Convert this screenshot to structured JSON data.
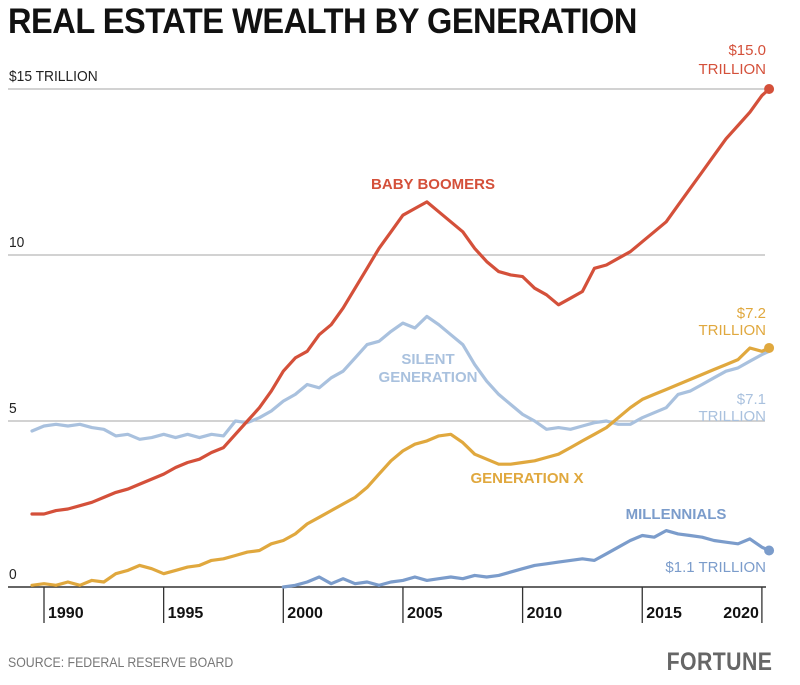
{
  "title": "REAL ESTATE WEALTH BY GENERATION",
  "source": "SOURCE: FEDERAL RESERVE BOARD",
  "brand": "FORTUNE",
  "chart_data": {
    "type": "line",
    "title": "REAL ESTATE WEALTH BY GENERATION",
    "xlabel": "",
    "ylabel": "",
    "xlim": [
      1989.5,
      2020.3
    ],
    "ylim": [
      0,
      15
    ],
    "grid": true,
    "x_ticks": [
      1990,
      1995,
      2000,
      2005,
      2010,
      2015,
      2020
    ],
    "x_tick_labels": [
      "1990",
      "1995",
      "2000",
      "2005",
      "2010",
      "2015",
      "2020"
    ],
    "y_ticks": [
      0,
      5,
      10,
      15
    ],
    "y_tick_labels": [
      "0",
      "5",
      "10",
      "$15 TRILLION"
    ],
    "units": "trillions of dollars",
    "series": [
      {
        "name": "BABY BOOMERS",
        "color": "#d4503a",
        "end_label": [
          "$15.0",
          "TRILLION"
        ],
        "end_value": 15.0,
        "x": [
          1989.5,
          1990,
          1990.5,
          1991,
          1991.5,
          1992,
          1992.5,
          1993,
          1993.5,
          1994,
          1994.5,
          1995,
          1995.5,
          1996,
          1996.5,
          1997,
          1997.5,
          1998,
          1998.5,
          1999,
          1999.5,
          2000,
          2000.5,
          2001,
          2001.5,
          2002,
          2002.5,
          2003,
          2003.5,
          2004,
          2004.5,
          2005,
          2005.5,
          2006,
          2006.5,
          2007,
          2007.5,
          2008,
          2008.5,
          2009,
          2009.5,
          2010,
          2010.5,
          2011,
          2011.5,
          2012,
          2012.5,
          2013,
          2013.5,
          2014,
          2014.5,
          2015,
          2015.5,
          2016,
          2016.5,
          2017,
          2017.5,
          2018,
          2018.5,
          2019,
          2019.5,
          2020,
          2020.3
        ],
        "values": [
          2.2,
          2.2,
          2.3,
          2.35,
          2.45,
          2.55,
          2.7,
          2.85,
          2.95,
          3.1,
          3.25,
          3.4,
          3.6,
          3.75,
          3.85,
          4.05,
          4.2,
          4.6,
          5.0,
          5.4,
          5.9,
          6.5,
          6.9,
          7.1,
          7.6,
          7.9,
          8.4,
          9.0,
          9.6,
          10.2,
          10.7,
          11.2,
          11.4,
          11.6,
          11.3,
          11.0,
          10.7,
          10.2,
          9.8,
          9.5,
          9.4,
          9.35,
          9.0,
          8.8,
          8.5,
          8.7,
          8.9,
          9.6,
          9.7,
          9.9,
          10.1,
          10.4,
          10.7,
          11.0,
          11.5,
          12.0,
          12.5,
          13.0,
          13.5,
          13.9,
          14.3,
          14.8,
          15.0
        ]
      },
      {
        "name": "SILENT GENERATION",
        "color": "#a9c1de",
        "end_label": [
          "$7.1",
          "TRILLION"
        ],
        "end_value": 7.1,
        "x": [
          1989.5,
          1990,
          1990.5,
          1991,
          1991.5,
          1992,
          1992.5,
          1993,
          1993.5,
          1994,
          1994.5,
          1995,
          1995.5,
          1996,
          1996.5,
          1997,
          1997.5,
          1998,
          1998.5,
          1999,
          1999.5,
          2000,
          2000.5,
          2001,
          2001.5,
          2002,
          2002.5,
          2003,
          2003.5,
          2004,
          2004.5,
          2005,
          2005.5,
          2006,
          2006.5,
          2007,
          2007.5,
          2008,
          2008.5,
          2009,
          2009.5,
          2010,
          2010.5,
          2011,
          2011.5,
          2012,
          2012.5,
          2013,
          2013.5,
          2014,
          2014.5,
          2015,
          2015.5,
          2016,
          2016.5,
          2017,
          2017.5,
          2018,
          2018.5,
          2019,
          2019.5,
          2020,
          2020.3
        ],
        "values": [
          4.7,
          4.85,
          4.9,
          4.85,
          4.9,
          4.8,
          4.75,
          4.55,
          4.6,
          4.45,
          4.5,
          4.6,
          4.5,
          4.6,
          4.5,
          4.6,
          4.55,
          5.0,
          4.95,
          5.1,
          5.3,
          5.6,
          5.8,
          6.1,
          6.0,
          6.3,
          6.5,
          6.9,
          7.3,
          7.4,
          7.7,
          7.95,
          7.8,
          8.15,
          7.9,
          7.6,
          7.3,
          6.7,
          6.2,
          5.8,
          5.5,
          5.2,
          5.0,
          4.75,
          4.8,
          4.75,
          4.85,
          4.95,
          5.0,
          4.9,
          4.9,
          5.1,
          5.25,
          5.4,
          5.8,
          5.9,
          6.1,
          6.3,
          6.5,
          6.6,
          6.8,
          7.0,
          7.1
        ]
      },
      {
        "name": "GENERATION X",
        "color": "#e0a83e",
        "end_label": [
          "$7.2",
          "TRILLION"
        ],
        "end_value": 7.2,
        "x": [
          1989.5,
          1990,
          1990.5,
          1991,
          1991.5,
          1992,
          1992.5,
          1993,
          1993.5,
          1994,
          1994.5,
          1995,
          1995.5,
          1996,
          1996.5,
          1997,
          1997.5,
          1998,
          1998.5,
          1999,
          1999.5,
          2000,
          2000.5,
          2001,
          2001.5,
          2002,
          2002.5,
          2003,
          2003.5,
          2004,
          2004.5,
          2005,
          2005.5,
          2006,
          2006.5,
          2007,
          2007.5,
          2008,
          2008.5,
          2009,
          2009.5,
          2010,
          2010.5,
          2011,
          2011.5,
          2012,
          2012.5,
          2013,
          2013.5,
          2014,
          2014.5,
          2015,
          2015.5,
          2016,
          2016.5,
          2017,
          2017.5,
          2018,
          2018.5,
          2019,
          2019.5,
          2020,
          2020.3
        ],
        "values": [
          0.05,
          0.1,
          0.05,
          0.15,
          0.05,
          0.2,
          0.15,
          0.4,
          0.5,
          0.65,
          0.55,
          0.4,
          0.5,
          0.6,
          0.65,
          0.8,
          0.85,
          0.95,
          1.05,
          1.1,
          1.3,
          1.4,
          1.6,
          1.9,
          2.1,
          2.3,
          2.5,
          2.7,
          3.0,
          3.4,
          3.8,
          4.1,
          4.3,
          4.4,
          4.55,
          4.6,
          4.35,
          4.0,
          3.85,
          3.7,
          3.7,
          3.75,
          3.8,
          3.9,
          4.0,
          4.2,
          4.4,
          4.6,
          4.8,
          5.1,
          5.4,
          5.65,
          5.8,
          5.95,
          6.1,
          6.25,
          6.4,
          6.55,
          6.7,
          6.85,
          7.2,
          7.1,
          7.2
        ]
      },
      {
        "name": "MILLENNIALS",
        "color": "#7b9ccb",
        "end_label": [
          "$1.1 TRILLION"
        ],
        "end_value": 1.1,
        "x": [
          2000,
          2000.5,
          2001,
          2001.5,
          2002,
          2002.5,
          2003,
          2003.5,
          2004,
          2004.5,
          2005,
          2005.5,
          2006,
          2006.5,
          2007,
          2007.5,
          2008,
          2008.5,
          2009,
          2009.5,
          2010,
          2010.5,
          2011,
          2011.5,
          2012,
          2012.5,
          2013,
          2013.5,
          2014,
          2014.5,
          2015,
          2015.5,
          2016,
          2016.5,
          2017,
          2017.5,
          2018,
          2018.5,
          2019,
          2019.5,
          2020,
          2020.3
        ],
        "values": [
          0.0,
          0.05,
          0.15,
          0.3,
          0.1,
          0.25,
          0.1,
          0.15,
          0.05,
          0.15,
          0.2,
          0.3,
          0.2,
          0.25,
          0.3,
          0.25,
          0.35,
          0.3,
          0.35,
          0.45,
          0.55,
          0.65,
          0.7,
          0.75,
          0.8,
          0.85,
          0.8,
          1.0,
          1.2,
          1.4,
          1.55,
          1.5,
          1.7,
          1.6,
          1.55,
          1.5,
          1.4,
          1.35,
          1.3,
          1.45,
          1.2,
          1.1
        ]
      }
    ],
    "annotations": [
      {
        "text": "BABY BOOMERS",
        "series": "BABY BOOMERS"
      },
      {
        "text": "SILENT",
        "series": "SILENT GENERATION"
      },
      {
        "text": "GENERATION",
        "series": "SILENT GENERATION"
      },
      {
        "text": "GENERATION X",
        "series": "GENERATION X"
      },
      {
        "text": "MILLENNIALS",
        "series": "MILLENNIALS"
      }
    ]
  }
}
